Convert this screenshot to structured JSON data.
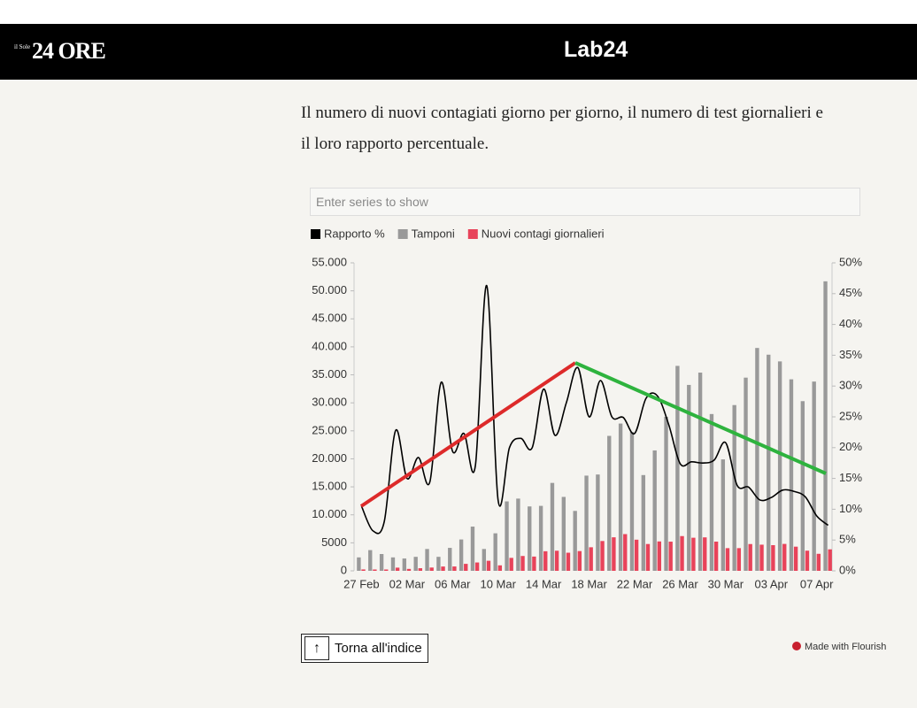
{
  "header": {
    "logo_small": "il Sole",
    "logo": "24 ORE",
    "brand": "Lab24"
  },
  "intro": "Il numero di nuovi contagiati giorno per giorno, il numero di test giornalieri e il loro rapporto percentuale.",
  "search_placeholder": "Enter series to show",
  "chart_data": {
    "type": "bar",
    "categories": [
      "27 Feb",
      null,
      null,
      null,
      "02 Mar",
      null,
      null,
      null,
      "06 Mar",
      null,
      null,
      null,
      "10 Mar",
      null,
      null,
      null,
      "14 Mar",
      null,
      null,
      null,
      "18 Mar",
      null,
      null,
      null,
      "22 Mar",
      null,
      null,
      null,
      "26 Mar",
      null,
      null,
      null,
      "30 Mar",
      null,
      null,
      null,
      "03 Apr",
      null,
      null,
      null,
      "07 Apr",
      null
    ],
    "series": [
      {
        "name": "Rapporto %",
        "type": "line",
        "axis": "y2",
        "color": "#000000",
        "values": [
          10.5,
          6.5,
          8.0,
          22.8,
          15,
          18.4,
          14.4,
          30.6,
          19.4,
          22.3,
          17,
          46.3,
          11.5,
          20,
          21.5,
          20,
          29.5,
          22,
          27.3,
          33,
          25,
          30.9,
          25,
          24.9,
          22.3,
          28,
          28.4,
          23.7,
          17.4,
          17.7,
          17.5,
          18,
          20.8,
          13.9,
          13.6,
          11.5,
          11.9,
          13.1,
          12.9,
          12,
          8.9,
          7.4
        ]
      },
      {
        "name": "Tamponi",
        "type": "bar",
        "color": "#999999",
        "values": [
          2400,
          3700,
          3000,
          2400,
          2200,
          2500,
          3900,
          2500,
          4100,
          5600,
          7900,
          3900,
          6700,
          12400,
          12900,
          11500,
          11600,
          15700,
          13200,
          10700,
          17000,
          17200,
          24100,
          26300,
          24800,
          17100,
          21500,
          27500,
          36600,
          33200,
          35400,
          28000,
          19900,
          29600,
          34500,
          39800,
          38600,
          37400,
          34200,
          30300,
          33800,
          51700
        ]
      },
      {
        "name": "Nuovi contagi giornalieri",
        "type": "bar",
        "color": "#e8435a",
        "values": [
          250,
          238,
          240,
          566,
          342,
          466,
          587,
          769,
          778,
          1247,
          1492,
          1797,
          977,
          2313,
          2651,
          2547,
          3497,
          3590,
          3233,
          3526,
          4207,
          5322,
          5986,
          6557,
          5560,
          4789,
          5249,
          5210,
          6203,
          5909,
          5974,
          5217,
          4050,
          4053,
          4782,
          4668,
          4585,
          4805,
          4316,
          3599,
          3039,
          3836
        ]
      }
    ],
    "ylim": [
      0,
      55000
    ],
    "yticks": [
      0,
      5000,
      {
        "value": 10000,
        "label": "10.000"
      },
      {
        "value": 15000,
        "label": "15.000"
      },
      {
        "value": 20000,
        "label": "20.000"
      },
      {
        "value": 25000,
        "label": "25.000"
      },
      {
        "value": 30000,
        "label": "30.000"
      },
      {
        "value": 35000,
        "label": "35.000"
      },
      {
        "value": 40000,
        "label": "40.000"
      },
      {
        "value": 45000,
        "label": "45.000"
      },
      {
        "value": 50000,
        "label": "50.000"
      },
      {
        "value": 55000,
        "label": "55.000"
      }
    ],
    "y2lim": [
      0,
      50
    ],
    "y2ticks": [
      {
        "value": 0,
        "label": "0%"
      },
      {
        "value": 5,
        "label": "5%"
      },
      {
        "value": 10,
        "label": "10%"
      },
      {
        "value": 15,
        "label": "15%"
      },
      {
        "value": 20,
        "label": "20%"
      },
      {
        "value": 25,
        "label": "25%"
      },
      {
        "value": 30,
        "label": "30%"
      },
      {
        "value": 35,
        "label": "35%"
      },
      {
        "value": 40,
        "label": "40%"
      },
      {
        "value": 45,
        "label": "45%"
      },
      {
        "value": 50,
        "label": "50%"
      }
    ],
    "legend": "top-left"
  },
  "back_button": "Torna all'indice",
  "credit": "Made with Flourish"
}
